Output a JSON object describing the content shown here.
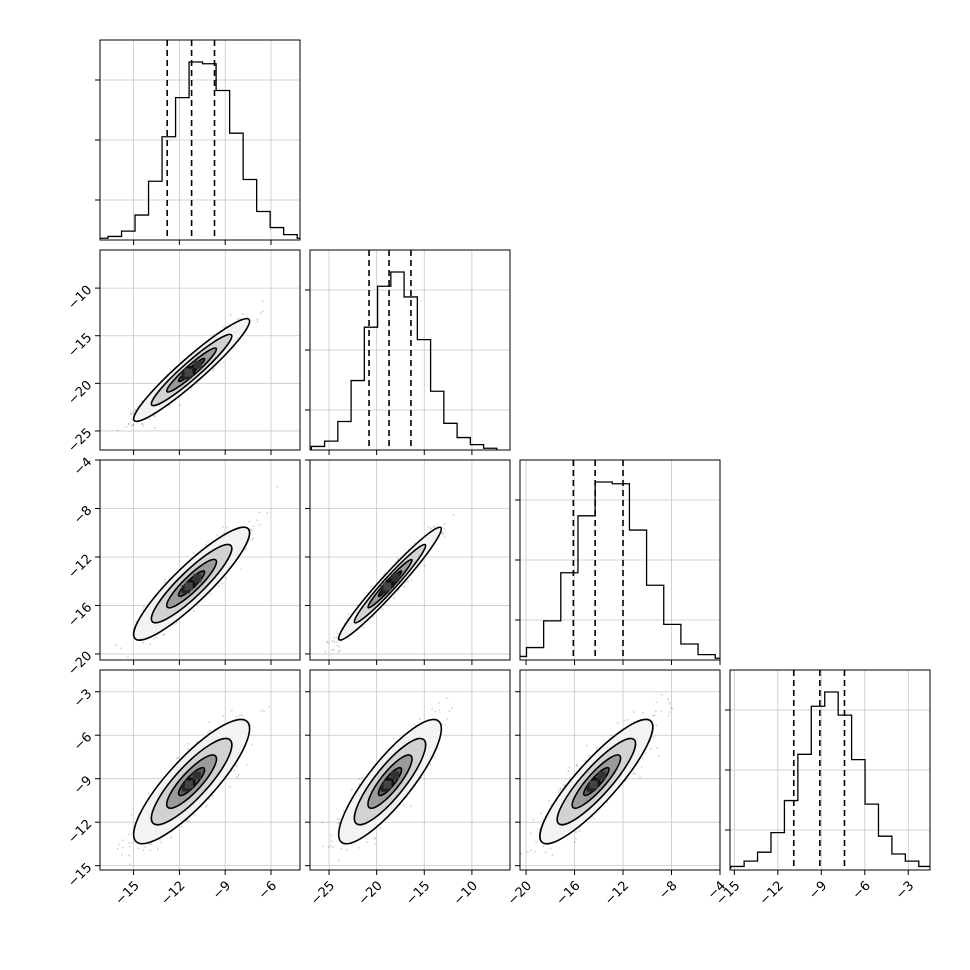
{
  "chart_data": {
    "type": "corner",
    "parameters": [
      {
        "index": 0,
        "range": [
          -17.2,
          -4.1
        ],
        "ticks": [
          -15,
          -12,
          -9,
          -6
        ],
        "tick_labels": [
          "−15",
          "−12",
          "−9",
          "−6"
        ],
        "mean": -11.2,
        "sd": 1.55,
        "quantiles": [
          -12.8,
          -11.2,
          -9.7
        ]
      },
      {
        "index": 1,
        "range": [
          -27.0,
          -6.0
        ],
        "ticks": [
          -25,
          -20,
          -15,
          -10
        ],
        "tick_labels": [
          "−25",
          "−20",
          "−15",
          "−10"
        ],
        "mean": -18.6,
        "sd": 2.2,
        "quantiles": [
          -20.8,
          -18.7,
          -16.4
        ]
      },
      {
        "index": 2,
        "range": [
          -20.5,
          -4.0
        ],
        "ticks": [
          -20,
          -16,
          -12,
          -8,
          -4
        ],
        "tick_labels": [
          "−20",
          "−16",
          "−12",
          "−8",
          "−4"
        ],
        "mean": -14.2,
        "sd": 1.9,
        "quantiles": [
          -16.1,
          -14.3,
          -12.0
        ]
      },
      {
        "index": 3,
        "range": [
          -15.3,
          -1.5
        ],
        "ticks": [
          -15,
          -12,
          -9,
          -6,
          -3
        ],
        "tick_labels": [
          "−15",
          "−12",
          "−9",
          "−6",
          "−3"
        ],
        "mean": -9.2,
        "sd": 1.75,
        "quantiles": [
          -10.9,
          -9.1,
          -7.4
        ]
      }
    ],
    "hist1d": [
      [
        1,
        2,
        5,
        14,
        33,
        58,
        80,
        100,
        99,
        84,
        60,
        34,
        16,
        7,
        3,
        1
      ],
      [
        2,
        5,
        16,
        39,
        69,
        92,
        100,
        86,
        62,
        33,
        15,
        7,
        3,
        1
      ],
      [
        2,
        7,
        22,
        49,
        81,
        100,
        99,
        73,
        42,
        20,
        9,
        3,
        1
      ],
      [
        1,
        2,
        5,
        10,
        21,
        39,
        65,
        92,
        100,
        87,
        62,
        37,
        19,
        9,
        5,
        2,
        1
      ]
    ],
    "correlations": {
      "1-0": 0.95,
      "2-0": 0.9,
      "2-1": 0.97,
      "3-0": 0.85,
      "3-1": 0.85,
      "3-2": 0.88
    },
    "grid": true,
    "contour_levels": [
      "0.5-sigma",
      "1-sigma",
      "1.5-sigma",
      "2-sigma"
    ]
  }
}
